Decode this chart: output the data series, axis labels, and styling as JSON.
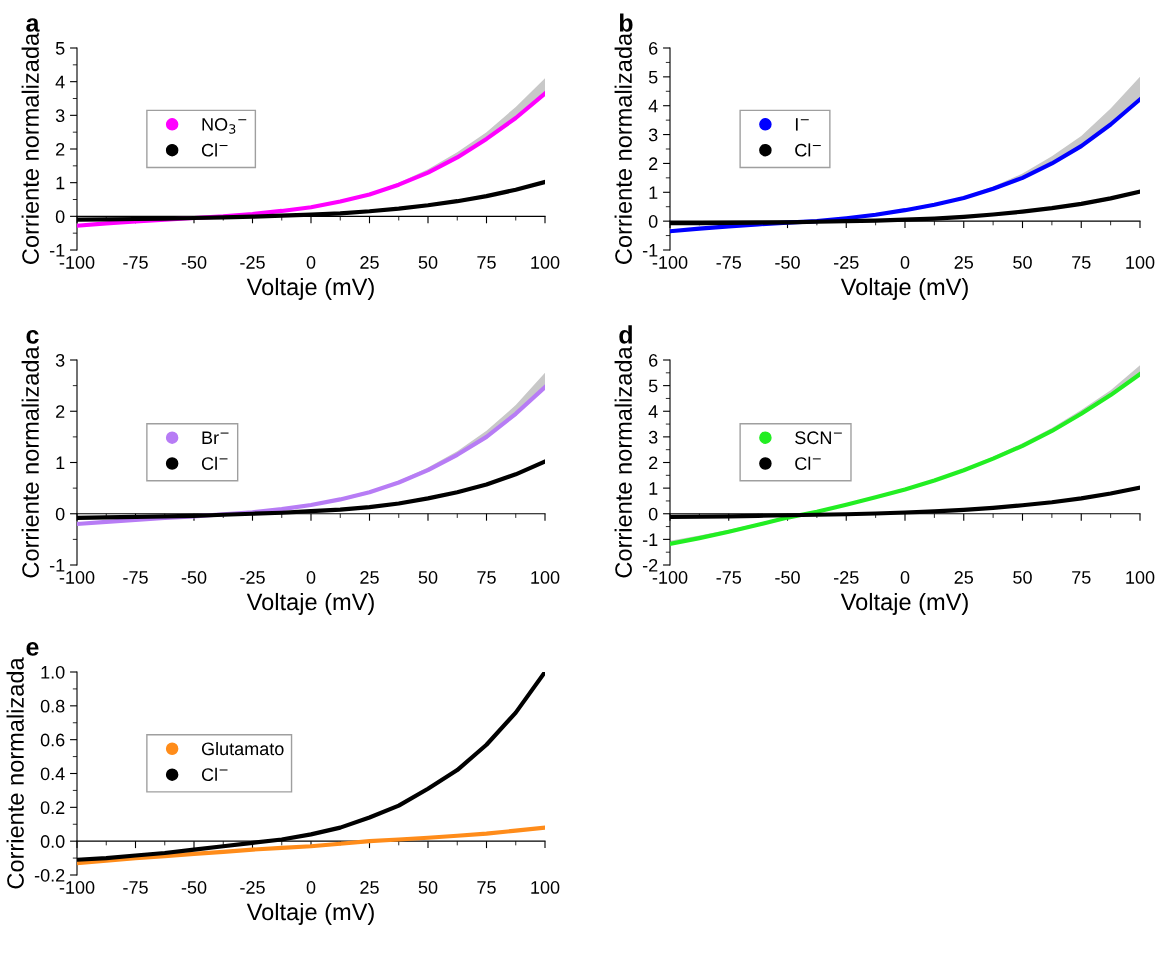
{
  "chart_data": [
    {
      "type": "line",
      "title": "a",
      "xlabel": "Voltaje (mV)",
      "ylabel": "Corriente normalizada",
      "x": [
        -100,
        -87.5,
        -75,
        -62.5,
        -50,
        -37.5,
        -25,
        -12.5,
        0,
        12.5,
        25,
        37.5,
        50,
        62.5,
        75,
        87.5,
        100
      ],
      "xlim": [
        -100,
        100
      ],
      "xticks": [
        -100,
        -75,
        -50,
        -25,
        0,
        25,
        50,
        75,
        100
      ],
      "ylim": [
        -1,
        5
      ],
      "yticks": [
        -1,
        0,
        1,
        2,
        3,
        4,
        5
      ],
      "legend": "center left",
      "marker": "none",
      "line_style": "solid",
      "grid": false,
      "series": [
        {
          "name": "NO$_{3}$$^{−}$",
          "color": "#ff00ff",
          "values": [
            -0.28,
            -0.21,
            -0.15,
            -0.1,
            -0.05,
            0.0,
            0.07,
            0.16,
            0.27,
            0.44,
            0.65,
            0.94,
            1.3,
            1.75,
            2.3,
            2.92,
            3.65
          ],
          "lower": [
            -0.28,
            -0.21,
            -0.15,
            -0.1,
            -0.05,
            0.0,
            0.07,
            0.16,
            0.27,
            0.44,
            0.65,
            0.94,
            1.3,
            1.75,
            2.3,
            2.92,
            3.65
          ],
          "upper": [
            -0.28,
            -0.21,
            -0.15,
            -0.1,
            -0.05,
            0.0,
            0.07,
            0.16,
            0.28,
            0.46,
            0.68,
            1.0,
            1.4,
            1.9,
            2.5,
            3.25,
            4.1
          ]
        },
        {
          "name": "Cl$^{−}$",
          "color": "#000000",
          "values": [
            -0.1,
            -0.09,
            -0.08,
            -0.07,
            -0.05,
            -0.03,
            -0.01,
            0.02,
            0.05,
            0.09,
            0.15,
            0.23,
            0.33,
            0.45,
            0.6,
            0.79,
            1.02
          ]
        }
      ]
    },
    {
      "type": "line",
      "title": "b",
      "xlabel": "Voltaje (mV)",
      "ylabel": "Corriente normalizada",
      "x": [
        -100,
        -87.5,
        -75,
        -62.5,
        -50,
        -37.5,
        -25,
        -12.5,
        0,
        12.5,
        25,
        37.5,
        50,
        62.5,
        75,
        87.5,
        100
      ],
      "xlim": [
        -100,
        100
      ],
      "xticks": [
        -100,
        -75,
        -50,
        -25,
        0,
        25,
        50,
        75,
        100
      ],
      "ylim": [
        -1,
        6
      ],
      "yticks": [
        -1,
        0,
        1,
        2,
        3,
        4,
        5,
        6
      ],
      "legend": "center left",
      "marker": "none",
      "line_style": "solid",
      "grid": false,
      "series": [
        {
          "name": "I$^{−}$",
          "color": "#0000ff",
          "values": [
            -0.35,
            -0.26,
            -0.18,
            -0.11,
            -0.05,
            0.0,
            0.1,
            0.22,
            0.38,
            0.57,
            0.8,
            1.12,
            1.5,
            2.0,
            2.6,
            3.35,
            4.22
          ],
          "lower": [
            -0.35,
            -0.26,
            -0.18,
            -0.11,
            -0.05,
            0.0,
            0.1,
            0.22,
            0.38,
            0.57,
            0.8,
            1.12,
            1.5,
            2.0,
            2.6,
            3.35,
            4.22
          ],
          "upper": [
            -0.35,
            -0.26,
            -0.18,
            -0.11,
            -0.05,
            0.0,
            0.1,
            0.22,
            0.38,
            0.6,
            0.85,
            1.2,
            1.65,
            2.25,
            2.95,
            3.9,
            5.0
          ]
        },
        {
          "name": "Cl$^{−}$",
          "color": "#000000",
          "values": [
            -0.07,
            -0.07,
            -0.06,
            -0.05,
            -0.04,
            -0.02,
            0.0,
            0.02,
            0.05,
            0.09,
            0.15,
            0.23,
            0.33,
            0.45,
            0.6,
            0.79,
            1.02
          ]
        }
      ]
    },
    {
      "type": "line",
      "title": "c",
      "xlabel": "Voltaje (mV)",
      "ylabel": "Corriente normalizada",
      "x": [
        -100,
        -87.5,
        -75,
        -62.5,
        -50,
        -37.5,
        -25,
        -12.5,
        0,
        12.5,
        25,
        37.5,
        50,
        62.5,
        75,
        87.5,
        100
      ],
      "xlim": [
        -100,
        100
      ],
      "xticks": [
        -100,
        -75,
        -50,
        -25,
        0,
        25,
        50,
        75,
        100
      ],
      "ylim": [
        -1,
        3
      ],
      "yticks": [
        -1,
        0,
        1,
        2,
        3
      ],
      "legend": "center left",
      "marker": "none",
      "line_style": "solid",
      "series": [
        {
          "name": "Br$^{−}$",
          "color": "#b77cf5",
          "values": [
            -0.2,
            -0.16,
            -0.12,
            -0.08,
            -0.05,
            -0.01,
            0.03,
            0.09,
            0.17,
            0.28,
            0.42,
            0.61,
            0.85,
            1.15,
            1.5,
            1.95,
            2.47
          ],
          "lower": [
            -0.2,
            -0.16,
            -0.12,
            -0.08,
            -0.05,
            -0.01,
            0.03,
            0.09,
            0.17,
            0.28,
            0.42,
            0.61,
            0.85,
            1.15,
            1.5,
            1.95,
            2.47
          ],
          "upper": [
            -0.2,
            -0.16,
            -0.12,
            -0.08,
            -0.05,
            -0.01,
            0.03,
            0.09,
            0.17,
            0.29,
            0.44,
            0.64,
            0.9,
            1.22,
            1.62,
            2.12,
            2.75
          ]
        },
        {
          "name": "Cl$^{−}$",
          "color": "#000000",
          "values": [
            -0.08,
            -0.07,
            -0.06,
            -0.05,
            -0.04,
            -0.02,
            0.0,
            0.02,
            0.05,
            0.08,
            0.13,
            0.2,
            0.3,
            0.42,
            0.57,
            0.77,
            1.02
          ]
        }
      ]
    },
    {
      "type": "line",
      "title": "d",
      "xlabel": "Voltaje (mV)",
      "ylabel": "Corriente normalizada",
      "x": [
        -100,
        -87.5,
        -75,
        -62.5,
        -50,
        -37.5,
        -25,
        -12.5,
        0,
        12.5,
        25,
        37.5,
        50,
        62.5,
        75,
        87.5,
        100
      ],
      "xlim": [
        -100,
        100
      ],
      "xticks": [
        -100,
        -75,
        -50,
        -25,
        0,
        25,
        50,
        75,
        100
      ],
      "ylim": [
        -2,
        6
      ],
      "yticks": [
        -2,
        -1,
        0,
        1,
        2,
        3,
        4,
        5,
        6
      ],
      "legend": "center left",
      "marker": "none",
      "line_style": "solid",
      "series": [
        {
          "name": "SCN$^{−}$",
          "color": "#22ee22",
          "values": [
            -1.18,
            -0.95,
            -0.7,
            -0.43,
            -0.15,
            0.08,
            0.35,
            0.64,
            0.95,
            1.3,
            1.7,
            2.15,
            2.65,
            3.23,
            3.9,
            4.63,
            5.45
          ],
          "lower": [
            -1.18,
            -0.95,
            -0.7,
            -0.43,
            -0.15,
            0.08,
            0.35,
            0.64,
            0.95,
            1.3,
            1.7,
            2.15,
            2.65,
            3.23,
            3.9,
            4.63,
            5.45
          ],
          "upper": [
            -1.05,
            -0.85,
            -0.62,
            -0.37,
            -0.1,
            0.12,
            0.39,
            0.68,
            1.0,
            1.35,
            1.76,
            2.22,
            2.75,
            3.35,
            4.05,
            4.82,
            5.8
          ]
        },
        {
          "name": "Cl$^{−}$",
          "color": "#000000",
          "values": [
            -0.12,
            -0.11,
            -0.1,
            -0.08,
            -0.06,
            -0.04,
            -0.02,
            0.01,
            0.05,
            0.09,
            0.15,
            0.23,
            0.33,
            0.45,
            0.6,
            0.79,
            1.02
          ]
        }
      ]
    },
    {
      "type": "line",
      "title": "e",
      "xlabel": "Voltaje (mV)",
      "ylabel": "Corriente normalizada",
      "x": [
        -100,
        -87.5,
        -75,
        -62.5,
        -50,
        -37.5,
        -25,
        -12.5,
        0,
        12.5,
        25,
        37.5,
        50,
        62.5,
        75,
        87.5,
        100
      ],
      "xlim": [
        -100,
        100
      ],
      "xticks": [
        -100,
        -75,
        -50,
        -25,
        0,
        25,
        50,
        75,
        100
      ],
      "ylim": [
        -0.2,
        1.0
      ],
      "yticks": [
        {
          "value": -0.2,
          "label": "-0.2"
        },
        {
          "value": 0,
          "label": "0.0"
        },
        {
          "value": 0.2,
          "label": "0.2"
        },
        {
          "value": 0.4,
          "label": "0.4"
        },
        {
          "value": 0.6,
          "label": "0.6"
        },
        {
          "value": 0.8,
          "label": "0.8"
        },
        {
          "value": 1.0,
          "label": "1.0"
        }
      ],
      "legend": "center left",
      "marker": "none",
      "line_style": "solid",
      "grid": false,
      "series": [
        {
          "name": "Glutamato",
          "color": "#ff8c1a",
          "values": [
            -0.13,
            -0.115,
            -0.1,
            -0.088,
            -0.075,
            -0.063,
            -0.05,
            -0.04,
            -0.03,
            -0.015,
            0.0,
            0.01,
            0.02,
            0.032,
            0.045,
            0.062,
            0.08
          ]
        },
        {
          "name": "Cl$^{−}$",
          "color": "#000000",
          "values": [
            -0.11,
            -0.1,
            -0.085,
            -0.07,
            -0.05,
            -0.03,
            -0.01,
            0.01,
            0.04,
            0.08,
            0.14,
            0.21,
            0.31,
            0.42,
            0.57,
            0.76,
            1.0
          ]
        }
      ]
    }
  ]
}
